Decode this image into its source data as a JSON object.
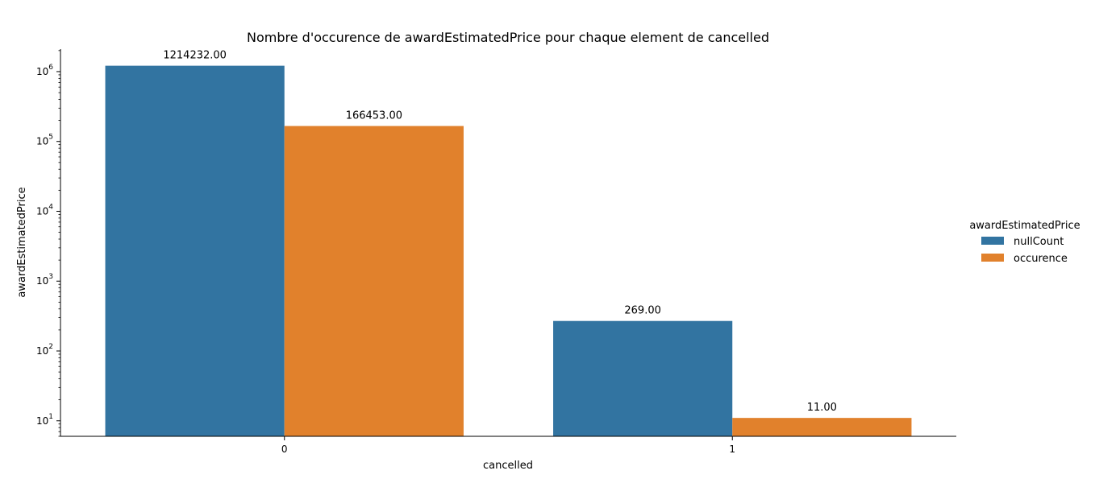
{
  "chart_data": {
    "type": "bar",
    "title": "Nombre d'occurence de awardEstimatedPrice pour chaque element de cancelled",
    "xlabel": "cancelled",
    "ylabel": "awardEstimatedPrice",
    "yscale": "log",
    "ylim": [
      6,
      2100000
    ],
    "yticks": [
      10,
      100,
      1000,
      10000,
      100000,
      1000000
    ],
    "ytick_labels": [
      {
        "base": "10",
        "exp": "1"
      },
      {
        "base": "10",
        "exp": "2"
      },
      {
        "base": "10",
        "exp": "3"
      },
      {
        "base": "10",
        "exp": "4"
      },
      {
        "base": "10",
        "exp": "5"
      },
      {
        "base": "10",
        "exp": "6"
      }
    ],
    "categories": [
      "0",
      "1"
    ],
    "series": [
      {
        "name": "nullCount",
        "color": "#3274a1",
        "values": [
          1214232,
          269
        ],
        "labels": [
          "1214232.00",
          "269.00"
        ]
      },
      {
        "name": "occurence",
        "color": "#e1812c",
        "values": [
          166453,
          11
        ],
        "labels": [
          "166453.00",
          "11.00"
        ]
      }
    ],
    "legend": {
      "title": "awardEstimatedPrice",
      "placement": "right",
      "entries": [
        "nullCount",
        "occurence"
      ]
    },
    "grid": false
  }
}
